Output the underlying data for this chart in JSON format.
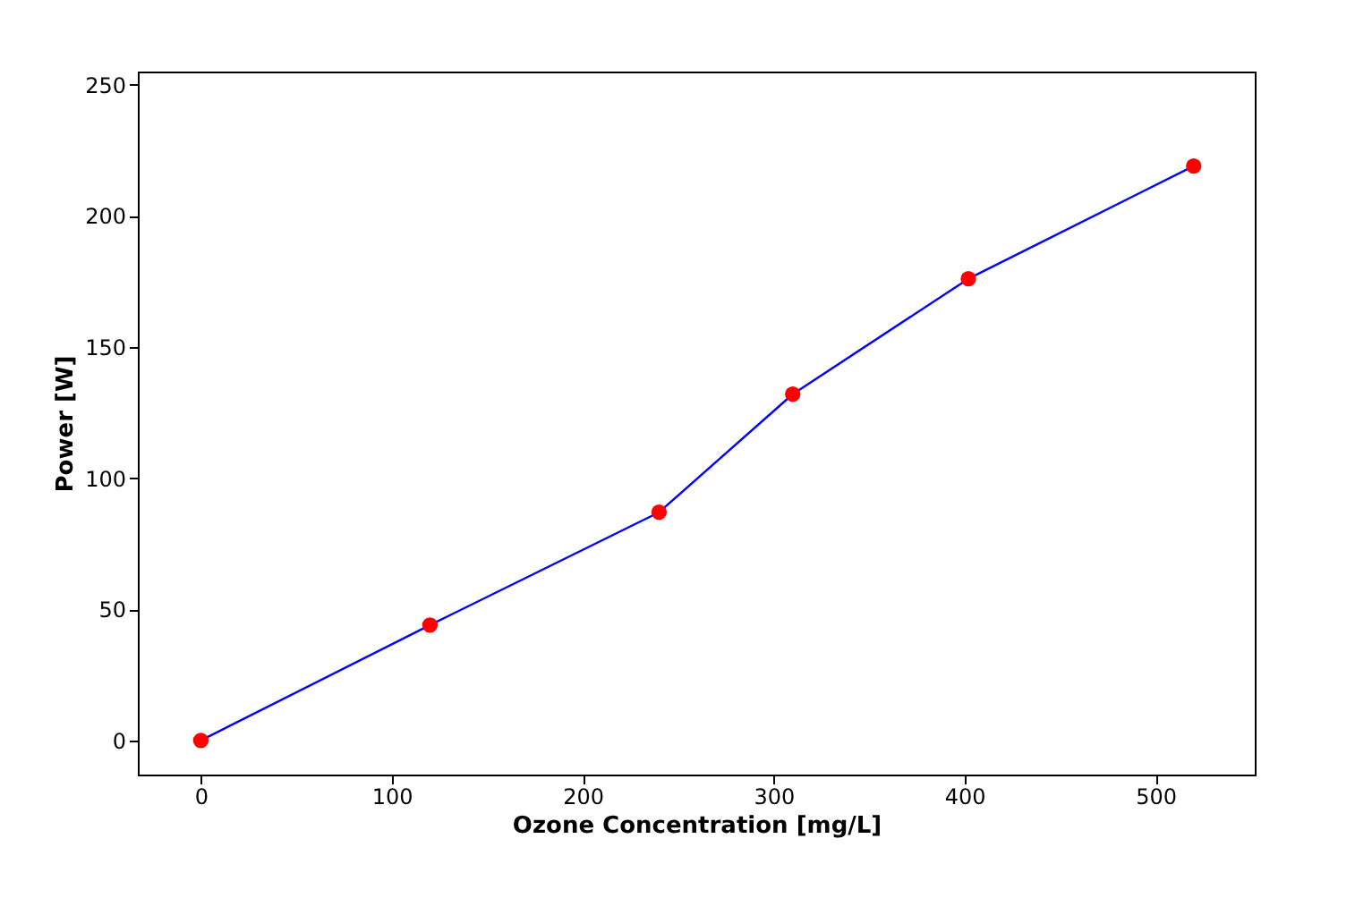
{
  "chart_data": {
    "type": "line",
    "xlabel": "Ozone Concentration [mg/L]",
    "ylabel": "Power [W]",
    "x": [
      0,
      120,
      240,
      310,
      402,
      520
    ],
    "series": [
      {
        "color": "#0000ff",
        "colors": [
          "#ff0000",
          "#ff0000",
          "#ff0000",
          "#ff0000",
          "#ff0000",
          "#ff0000"
        ],
        "values": [
          0,
          44,
          87,
          132,
          176,
          219
        ]
      }
    ],
    "marker": "circle",
    "line_style": "solid",
    "xlim": [
      -33,
      552
    ],
    "xticks": [
      0,
      100,
      200,
      300,
      400,
      500
    ],
    "ylim": [
      -13,
      255
    ],
    "yticks": [
      0,
      50,
      100,
      150,
      200,
      250
    ],
    "grid": false,
    "legend": false
  }
}
